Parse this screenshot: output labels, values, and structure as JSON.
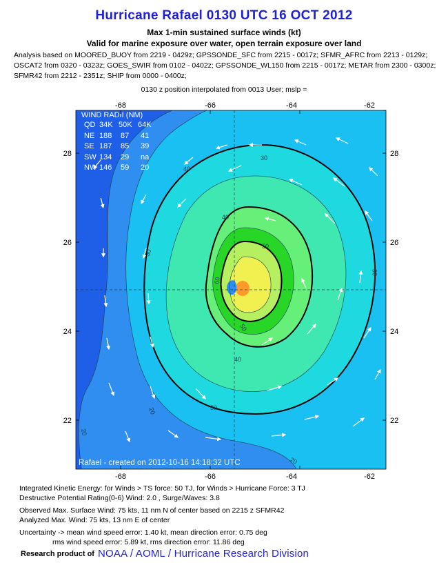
{
  "title": "Hurricane Rafael 0130 UTC 16 OCT 2012",
  "subtitle1": "Max 1-min sustained surface winds (kt)",
  "subtitle2": "Valid for marine exposure over water, open terrain exposure over land",
  "analysis_lines": [
    "Analysis based on MOORED_BUOY from 2219 - 0429z; GPSSONDE_SFC from 2215 - 0017z; SFMR_AFRC from 2213 - 0129z;",
    "OSCAT2 from 0320 - 0323z; GOES_SWIR from 0102 - 0402z; GPSSONDE_WL150 from 2215 - 0017z; METAR from 2300 - 0300z;",
    "SFMR42 from 2212 - 2351z; SHIP from 0000 - 0400z;"
  ],
  "position_note": "0130 z position interpolated from 0013 User; mslp =",
  "map": {
    "lon_ticks": [
      "-68",
      "-66",
      "-64",
      "-62"
    ],
    "lat_ticks": [
      "28",
      "26",
      "24",
      "22"
    ],
    "contour_labels": [
      "30",
      "30",
      "30",
      "40",
      "40",
      "50",
      "50",
      "60",
      "20",
      "20",
      "20",
      "30",
      "40"
    ],
    "credit": "Rafael - created on 2012-10-16 14:18:32 UTC",
    "wind_radii": {
      "title": "WIND RADII (NM)",
      "header": [
        "QD",
        "34K",
        "50K",
        "64K"
      ],
      "rows": [
        [
          "NE",
          "188",
          "87",
          "41"
        ],
        [
          "SE",
          "187",
          "85",
          "39"
        ],
        [
          "SW",
          "134",
          "29",
          "na"
        ],
        [
          "NW",
          "146",
          "59",
          "20"
        ]
      ]
    },
    "colors": {
      "background": "#1f5fe8",
      "ring_20": "#2f8ef0",
      "ring_30": "#1bc0f2",
      "ring_40": "#1fd9e0",
      "ring_45": "#3fe8b0",
      "ring_50": "#66f07a",
      "ring_55": "#28d628",
      "ring_60": "#b6f060",
      "ring_65": "#f0f050",
      "core": "#ff9a2a"
    }
  },
  "footer": {
    "ike": "Integrated Kinetic Energy: for Winds > TS force: 50 TJ, for Winds > Hurricane Force: 3 TJ",
    "dpr": "Destructive Potential Rating(0-6)  Wind: 2.0 , Surge/Waves: 3.8",
    "observed": "Observed Max. Surface Wind: 75 kts, 11 nm N of center based on 2215 z SFMR42",
    "analyzed": "Analyzed Max. Wind: 75 kts, 13 nm  E of center",
    "uncert1": "Uncertainty -> mean wind speed error: 1.40 kt, mean direction error: 0.75 deg",
    "uncert2": "rms wind speed error: 5.89 kt, rms direction error: 11.86 deg",
    "research": "Research product of",
    "org": "NOAA  /  AOML  /  Hurricane Research Division"
  }
}
